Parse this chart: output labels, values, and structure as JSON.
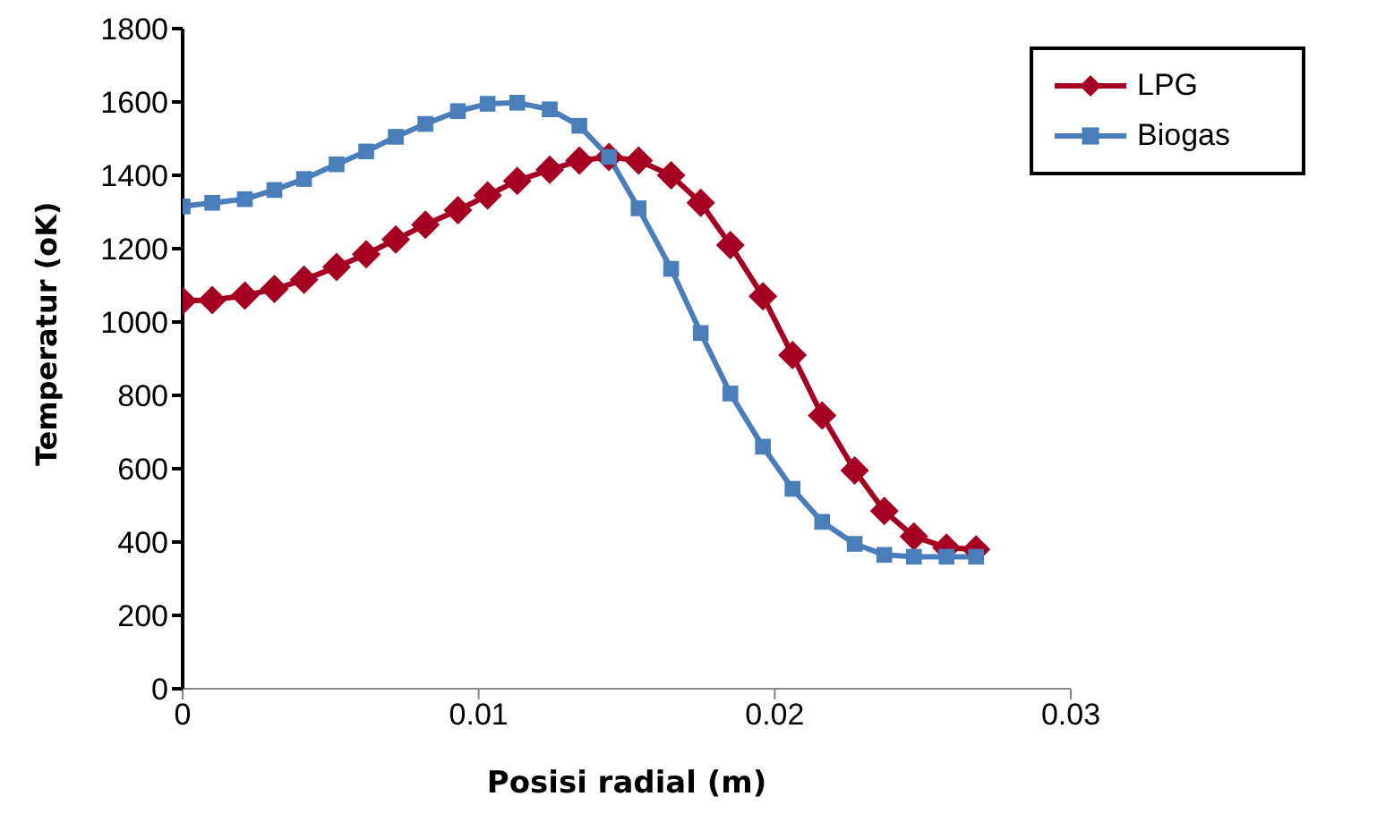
{
  "chart_data": {
    "type": "line",
    "xlabel": "Posisi radial (m)",
    "ylabel": "Temperatur (oK)",
    "x": [
      0,
      0.001,
      0.0021,
      0.0031,
      0.0041,
      0.0052,
      0.0062,
      0.0072,
      0.0082,
      0.0093,
      0.0103,
      0.0113,
      0.0124,
      0.0134,
      0.0144,
      0.0154,
      0.0165,
      0.0175,
      0.0185,
      0.0196,
      0.0206,
      0.0216,
      0.0227,
      0.0237,
      0.0247,
      0.0258,
      0.0268
    ],
    "series": [
      {
        "name": "LPG",
        "color": "#a50021",
        "marker": "diamond",
        "values": [
          1058,
          1060,
          1072,
          1090,
          1115,
          1150,
          1185,
          1225,
          1265,
          1305,
          1345,
          1385,
          1415,
          1440,
          1450,
          1440,
          1400,
          1325,
          1210,
          1070,
          910,
          745,
          595,
          485,
          415,
          385,
          380
        ]
      },
      {
        "name": "Biogas",
        "color": "#4a7ebb",
        "marker": "square",
        "values": [
          1315,
          1325,
          1335,
          1360,
          1390,
          1430,
          1465,
          1505,
          1540,
          1575,
          1595,
          1598,
          1580,
          1535,
          1450,
          1310,
          1145,
          970,
          805,
          660,
          545,
          455,
          395,
          365,
          360,
          360,
          360
        ]
      }
    ],
    "xlim": [
      0,
      0.03
    ],
    "xticks": [
      0,
      0.01,
      0.02,
      0.03
    ],
    "ylim": [
      0,
      1800
    ],
    "yticks": [
      0,
      200,
      400,
      600,
      800,
      1000,
      1200,
      1400,
      1600,
      1800
    ],
    "legend": "top right",
    "grid": false,
    "line_style": "solid"
  }
}
